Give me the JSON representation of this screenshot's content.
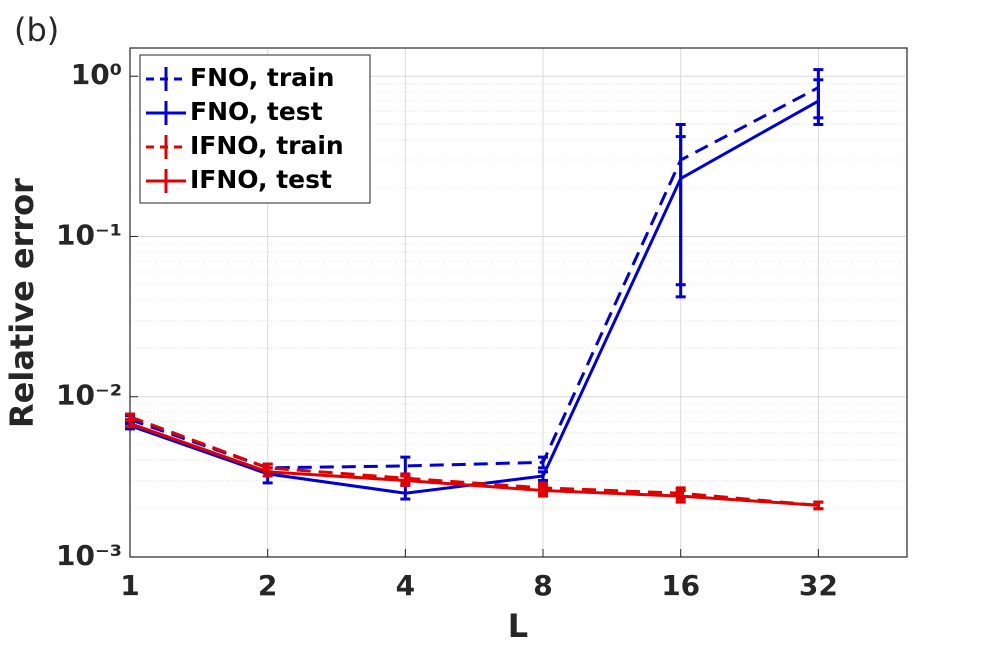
{
  "chart_data": {
    "type": "line",
    "panel_label": "(b)",
    "x_label": "L",
    "y_label": "Relative error",
    "xscale": "log",
    "yscale": "log",
    "grid": true,
    "legend": "upper left",
    "x": [
      1,
      2,
      4,
      8,
      16,
      32
    ],
    "xlim": [
      1,
      50
    ],
    "xticks": [
      1,
      2,
      4,
      8,
      16,
      32
    ],
    "ylim": [
      0.001,
      1.5
    ],
    "yticks": [
      {
        "value": 0.001,
        "label": "10⁻³"
      },
      {
        "value": 0.01,
        "label": "10⁻²"
      },
      {
        "value": 0.1,
        "label": "10⁻¹"
      },
      {
        "value": 1,
        "label": "10⁰"
      }
    ],
    "series": [
      {
        "name": "FNO, train",
        "color": "#0000d6",
        "linestyle": "dashed",
        "values": [
          0.0072,
          0.0036,
          0.0037,
          0.0039,
          0.3,
          0.85
        ],
        "lower": [
          0.0068,
          0.0034,
          0.0032,
          0.0036,
          0.05,
          0.55
        ],
        "upper": [
          0.0076,
          0.0038,
          0.0042,
          0.0042,
          0.42,
          1.1
        ]
      },
      {
        "name": "FNO, test",
        "color": "#0000d6",
        "linestyle": "solid",
        "values": [
          0.0066,
          0.0033,
          0.0025,
          0.0032,
          0.23,
          0.7
        ],
        "lower": [
          0.0063,
          0.0029,
          0.0023,
          0.003,
          0.042,
          0.5
        ],
        "upper": [
          0.0069,
          0.0036,
          0.0028,
          0.0034,
          0.5,
          0.95
        ]
      },
      {
        "name": "IFNO, train",
        "color": "#e00000",
        "linestyle": "dashed",
        "values": [
          0.0075,
          0.0036,
          0.0031,
          0.0027,
          0.0025,
          0.0021
        ],
        "lower": [
          0.0072,
          0.0034,
          0.0029,
          0.0025,
          0.0023,
          0.002
        ],
        "upper": [
          0.0078,
          0.0038,
          0.0033,
          0.0029,
          0.0027,
          0.0022
        ]
      },
      {
        "name": "IFNO, test",
        "color": "#e00000",
        "linestyle": "solid",
        "values": [
          0.0068,
          0.0034,
          0.003,
          0.0026,
          0.0024,
          0.0021
        ],
        "lower": [
          0.0065,
          0.0032,
          0.0028,
          0.0024,
          0.0022,
          0.002
        ],
        "upper": [
          0.0071,
          0.0036,
          0.0032,
          0.0028,
          0.0026,
          0.0022
        ]
      }
    ]
  }
}
